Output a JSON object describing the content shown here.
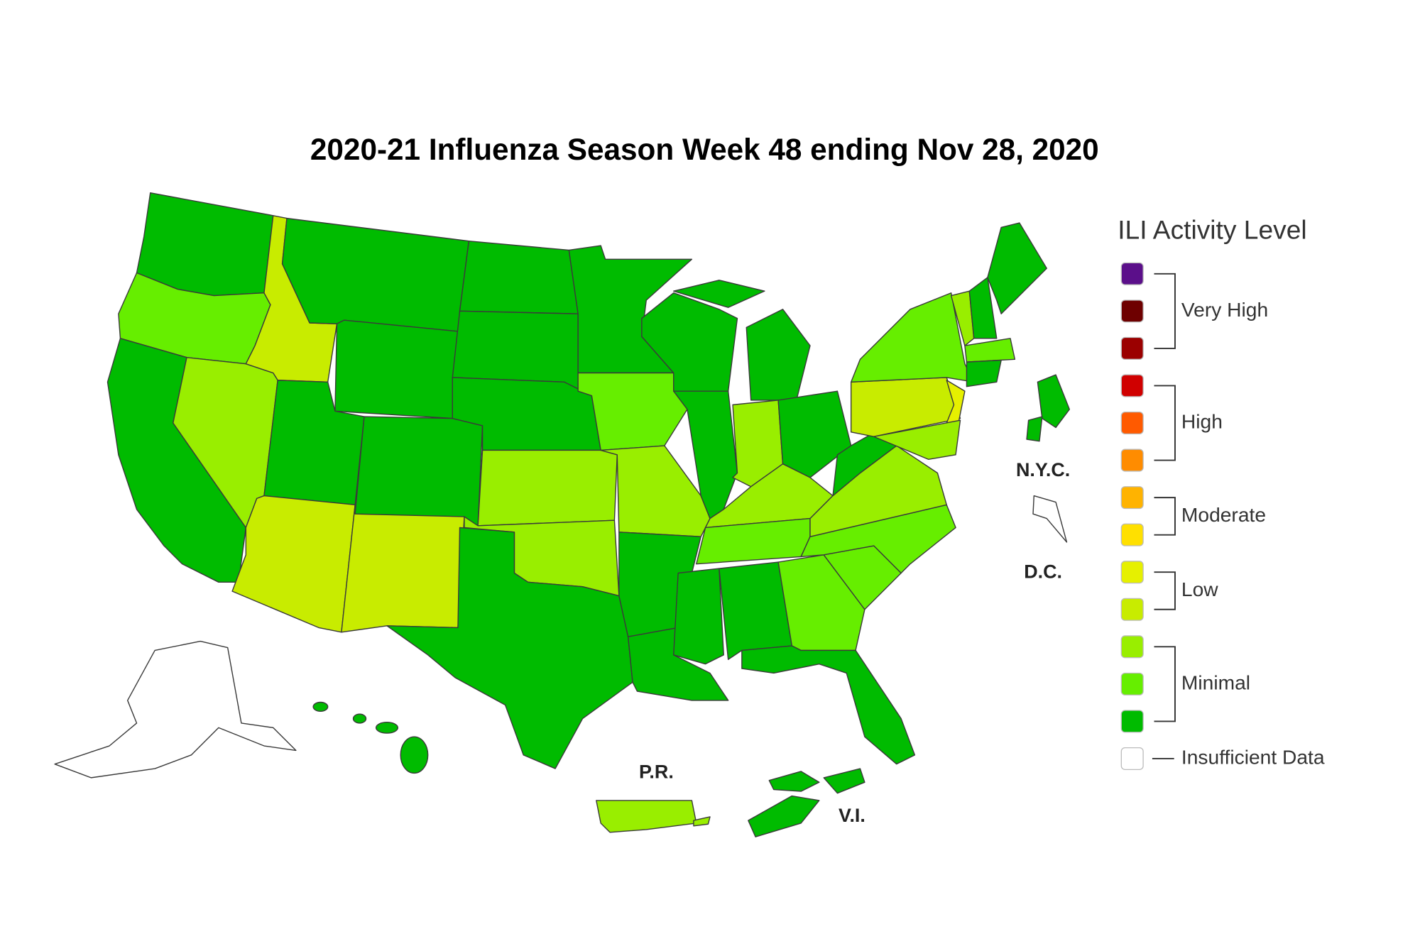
{
  "title": "2020-21 Influenza Season Week 48 ending Nov 28, 2020",
  "legend": {
    "title": "ILI Activity Level",
    "levels": [
      "#5b0f8a",
      "#6e0000",
      "#9b0000",
      "#d00000",
      "#ff5a00",
      "#ff8c00",
      "#ffb300",
      "#ffe000",
      "#e6f000",
      "#c8ec00",
      "#99ee00",
      "#66ee00",
      "#00bb00",
      "#ffffff"
    ],
    "groups": [
      {
        "label": "Very High",
        "count": 3
      },
      {
        "label": "High",
        "count": 3
      },
      {
        "label": "Moderate",
        "count": 2
      },
      {
        "label": "Low",
        "count": 2
      },
      {
        "label": "Minimal",
        "count": 3
      },
      {
        "label": "Insufficient Data",
        "count": 1
      }
    ]
  },
  "labels": [
    "N.Y.C.",
    "D.C.",
    "P.R.",
    "V.I."
  ]
}
